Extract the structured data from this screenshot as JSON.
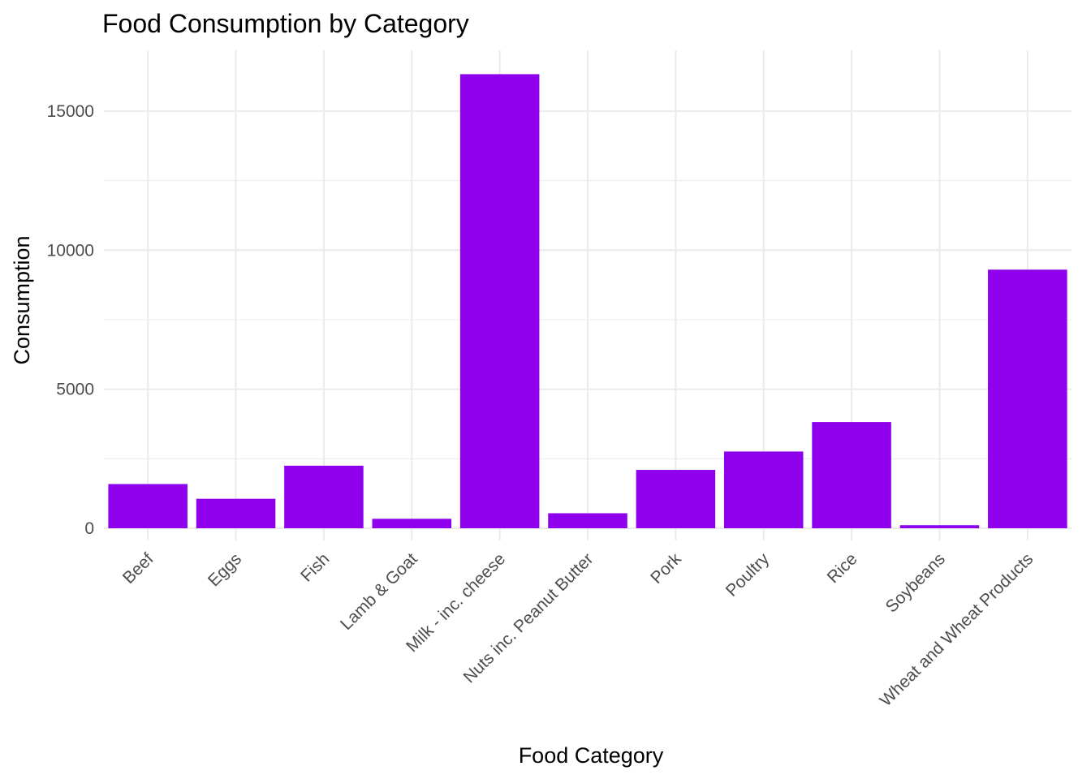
{
  "chart_data": {
    "type": "bar",
    "title": "Food Consumption by Category",
    "xlabel": "Food Category",
    "ylabel": "Consumption",
    "categories": [
      "Beef",
      "Eggs",
      "Fish",
      "Lamb & Goat",
      "Milk - inc. cheese",
      "Nuts inc. Peanut Butter",
      "Pork",
      "Poultry",
      "Rice",
      "Soybeans",
      "Wheat and Wheat Products"
    ],
    "values": [
      1590,
      1060,
      2250,
      340,
      16330,
      540,
      2100,
      2760,
      3820,
      110,
      9300
    ],
    "ylim": [
      0,
      17000
    ],
    "yticks": [
      0,
      5000,
      10000,
      15000
    ],
    "grid": true,
    "legend": "none",
    "colors": {
      "bar": "#8f00ed",
      "grid": "#ebebeb",
      "tick_text": "#4d4d4d",
      "title_text": "#000000"
    }
  }
}
